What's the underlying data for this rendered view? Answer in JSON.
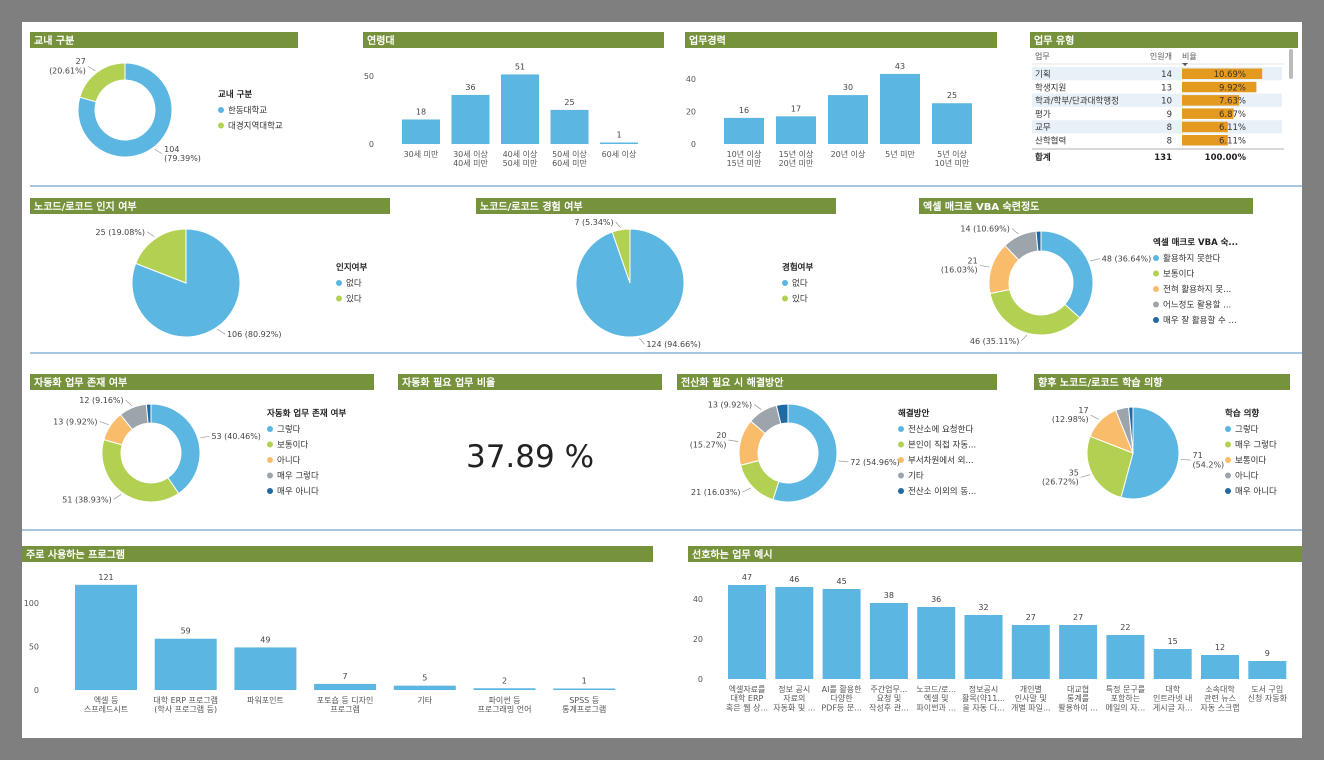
{
  "colors": {
    "header": "#76923c",
    "bar": "#5cb6e2",
    "orange_bar": "#e39a1e",
    "divider": "#4b8fc1",
    "blue": "#5cb6e2",
    "green": "#b2d153",
    "orange": "#f8bc6a",
    "gray": "#9ca5ac",
    "navy": "#1f6aa3"
  },
  "chart_data": [
    {
      "id": "school",
      "type": "pie",
      "title": "교내 구분",
      "donut": true,
      "legend_title": "교내 구분",
      "slices": [
        {
          "name": "한동대학교",
          "value": 104,
          "label": "104\n(79.39%)"
        },
        {
          "name": "대경지역대학교",
          "value": 27,
          "label": "27\n(20.61%)"
        }
      ]
    },
    {
      "id": "age",
      "type": "bar",
      "title": "연령대",
      "categories": [
        "30세 미만",
        "30세 이상\n40세 미만",
        "40세 이상\n50세 미만",
        "50세 이상\n60세 미만",
        "60세 이상"
      ],
      "values": [
        18,
        36,
        51,
        25,
        1
      ],
      "yticks": [
        0,
        50
      ],
      "ylim": [
        0,
        55
      ]
    },
    {
      "id": "career",
      "type": "bar",
      "title": "업무경력",
      "categories": [
        "10년 이상\n15년 미만",
        "15년 이상\n20년 미만",
        "20년 이상",
        "5년 미만",
        "5년 이상\n10년 미만"
      ],
      "values": [
        16,
        17,
        30,
        43,
        25
      ],
      "yticks": [
        0,
        20,
        40
      ],
      "ylim": [
        0,
        46
      ]
    },
    {
      "id": "worktype",
      "type": "table",
      "title": "업무 유형",
      "columns": [
        "업무",
        "인원개",
        "비율"
      ],
      "rows": [
        {
          "name": "기획",
          "count": 14,
          "pct": "10.69%",
          "value": 10.69
        },
        {
          "name": "학생지원",
          "count": 13,
          "pct": "9.92%",
          "value": 9.92
        },
        {
          "name": "학과/학부/단과대학행정",
          "count": 10,
          "pct": "7.63%",
          "value": 7.63
        },
        {
          "name": "평가",
          "count": 9,
          "pct": "6.87%",
          "value": 6.87
        },
        {
          "name": "교무",
          "count": 8,
          "pct": "6.11%",
          "value": 6.11
        },
        {
          "name": "산학협력",
          "count": 8,
          "pct": "6.11%",
          "value": 6.11
        }
      ],
      "total": {
        "name": "합계",
        "count": 131,
        "pct": "100.00%"
      }
    },
    {
      "id": "aware",
      "type": "pie",
      "title": "노코드/로코드 인지 여부",
      "donut": false,
      "legend_title": "인지여부",
      "slices": [
        {
          "name": "없다",
          "value": 106,
          "label": "106 (80.92%)"
        },
        {
          "name": "있다",
          "value": 25,
          "label": "25 (19.08%)"
        }
      ]
    },
    {
      "id": "experience",
      "type": "pie",
      "title": "노코드/로코드 경험 여부",
      "donut": false,
      "legend_title": "경험여부",
      "slices": [
        {
          "name": "없다",
          "value": 124,
          "label": "124 (94.66%)"
        },
        {
          "name": "있다",
          "value": 7,
          "label": "7 (5.34%)"
        }
      ]
    },
    {
      "id": "vba",
      "type": "pie",
      "title": "엑셀 매크로 VBA 숙련정도",
      "donut": true,
      "legend_title": "엑셀 매크로 VBA 숙...",
      "slices": [
        {
          "name": "활용하지 못한다",
          "value": 48,
          "label": "48 (36.64%)"
        },
        {
          "name": "보통이다",
          "value": 46,
          "label": "46 (35.11%)"
        },
        {
          "name": "전혀 활용하지 못...",
          "value": 21,
          "label": "21\n(16.03%)"
        },
        {
          "name": "어느정도 활용할 ...",
          "value": 14,
          "label": "14 (10.69%)"
        },
        {
          "name": "매우 잘 활용할 수 ...",
          "value": 2,
          "label": ""
        }
      ]
    },
    {
      "id": "automation",
      "type": "pie",
      "title": "자동화 업무 존재 여부",
      "donut": true,
      "legend_title": "자동화 업무 존재 여부",
      "slices": [
        {
          "name": "그렇다",
          "value": 53,
          "label": "53 (40.46%)"
        },
        {
          "name": "보통이다",
          "value": 51,
          "label": "51 (38.93%)"
        },
        {
          "name": "아니다",
          "value": 13,
          "label": "13 (9.92%)"
        },
        {
          "name": "매우 그렇다",
          "value": 12,
          "label": "12 (9.16%)"
        },
        {
          "name": "매우 아니다",
          "value": 2,
          "label": ""
        }
      ]
    },
    {
      "id": "ratio",
      "type": "table",
      "title": "자동화 필요 업무 비율",
      "kpi": "37.89 %"
    },
    {
      "id": "solution",
      "type": "pie",
      "title": "전산화 필요 시 해결방안",
      "donut": true,
      "legend_title": "해결방안",
      "slices": [
        {
          "name": "전산소에 요청한다",
          "value": 72,
          "label": "72 (54.96%)"
        },
        {
          "name": "본인이 직접 자동...",
          "value": 21,
          "label": "21 (16.03%)"
        },
        {
          "name": "부서차원에서 외...",
          "value": 20,
          "label": "20\n(15.27%)"
        },
        {
          "name": "기타",
          "value": 13,
          "label": "13 (9.92%)"
        },
        {
          "name": "전산소 이외의 동...",
          "value": 5,
          "label": ""
        }
      ]
    },
    {
      "id": "learning",
      "type": "pie",
      "title": "향후 노코드/로코드 학습 의향",
      "donut": false,
      "legend_title": "학습 의향",
      "slices": [
        {
          "name": "그렇다",
          "value": 71,
          "label": "71\n(54.2%)"
        },
        {
          "name": "매우 그렇다",
          "value": 35,
          "label": "35\n(26.72%)"
        },
        {
          "name": "보통이다",
          "value": 17,
          "label": "17\n(12.98%)"
        },
        {
          "name": "아니다",
          "value": 6,
          "label": ""
        },
        {
          "name": "매우 아니다",
          "value": 2,
          "label": ""
        }
      ]
    },
    {
      "id": "programs",
      "type": "bar",
      "title": "주로 사용하는 프로그램",
      "categories": [
        "엑셀 등\n스프레드시트",
        "대학 ERP 프로그램\n(학사 프로그램 등)",
        "파워포인트",
        "포토숍 등 디자인\n프로그램",
        "기타",
        "파이썬 등\n프로그래밍 언어",
        "SPSS 등\n통계프로그램"
      ],
      "values": [
        121,
        59,
        49,
        7,
        5,
        2,
        1
      ],
      "yticks": [
        0,
        50,
        100
      ],
      "ylim": [
        0,
        130
      ]
    },
    {
      "id": "preferred",
      "type": "bar",
      "title": "선호하는 업무 예시",
      "categories": [
        "엑셀자료를\n대학 ERP\n혹은 웹 상...",
        "정보 공시\n자료의\n자동화 및 ...",
        "AI를 활용한\n다양한\nPDF등 문...",
        "주간업무...\n요청 및\n작성후 관...",
        "노코드/로...\n엑셀 및\n파이썬과 ...",
        "정보공시\n활목(약11...\n을 자동 다...",
        "개인별\n인사말 및\n개별 파일...",
        "대교협\n통계를\n활용하여 ...",
        "특정 문구를\n포함하는\n메일의 자...",
        "대학\n인트라넷 내\n게시글 자...",
        "소속대학\n관련 뉴스\n자동 스크랩",
        "도서 구입\n신청 자동화"
      ],
      "values": [
        47,
        46,
        45,
        38,
        36,
        32,
        27,
        27,
        22,
        15,
        12,
        9
      ],
      "yticks": [
        0,
        20,
        40
      ],
      "ylim": [
        0,
        50
      ]
    }
  ]
}
